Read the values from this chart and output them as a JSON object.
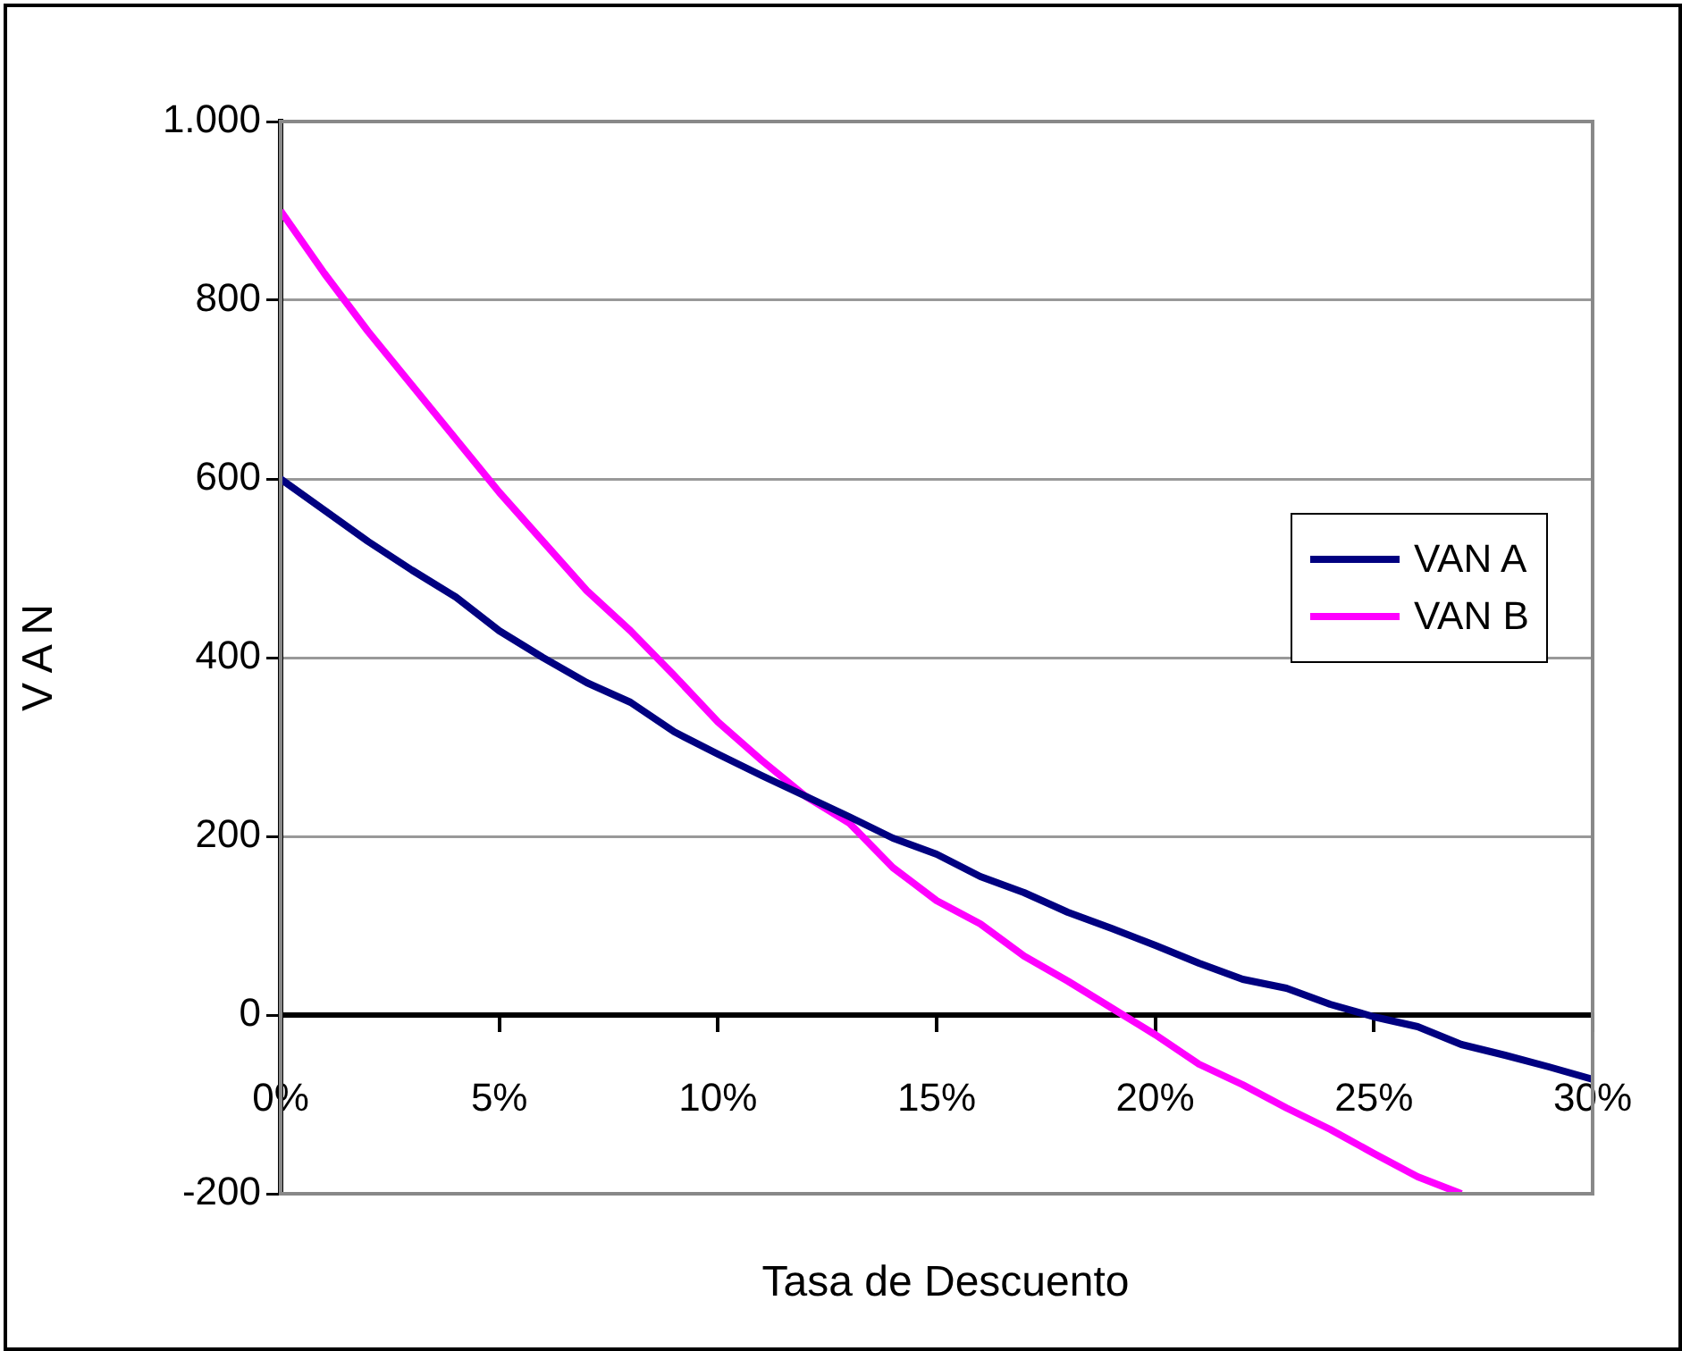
{
  "chart_data": {
    "type": "line",
    "xlabel": "Tasa de Descuento",
    "ylabel": "V A N",
    "x": [
      0,
      1,
      2,
      3,
      4,
      5,
      6,
      7,
      8,
      9,
      10,
      11,
      12,
      13,
      14,
      15,
      16,
      17,
      18,
      19,
      20,
      21,
      22,
      23,
      24,
      25,
      26,
      27,
      28,
      29,
      30
    ],
    "series": [
      {
        "name": "VAN A",
        "color": "#000080",
        "values": [
          600,
          565,
          530,
          498,
          468,
          430,
          400,
          372,
          350,
          317,
          292,
          268,
          245,
          222,
          198,
          180,
          155,
          137,
          115,
          97,
          78,
          58,
          40,
          30,
          12,
          -2,
          -13,
          -33,
          -45,
          -58,
          -72
        ]
      },
      {
        "name": "VAN B",
        "color": "#ff00ff",
        "values": [
          900,
          830,
          765,
          705,
          645,
          585,
          530,
          475,
          430,
          380,
          328,
          285,
          245,
          215,
          165,
          128,
          102,
          66,
          38,
          8,
          -22,
          -55,
          -78,
          -104,
          -128,
          -155,
          -181,
          -200,
          null,
          null,
          null
        ]
      }
    ],
    "xlim": [
      0,
      30
    ],
    "xticks": [
      {
        "value": 0,
        "label": "0%"
      },
      {
        "value": 5,
        "label": "5%"
      },
      {
        "value": 10,
        "label": "10%"
      },
      {
        "value": 15,
        "label": "15%"
      },
      {
        "value": 20,
        "label": "20%"
      },
      {
        "value": 25,
        "label": "25%"
      },
      {
        "value": 30,
        "label": "30%"
      }
    ],
    "ylim": [
      -200,
      1000
    ],
    "yticks": [
      -200,
      0,
      200,
      400,
      600,
      800,
      {
        "value": 1000,
        "label": "1.000"
      }
    ],
    "grid": "y",
    "legend": "right",
    "marker": "none",
    "line_style": "solid"
  }
}
